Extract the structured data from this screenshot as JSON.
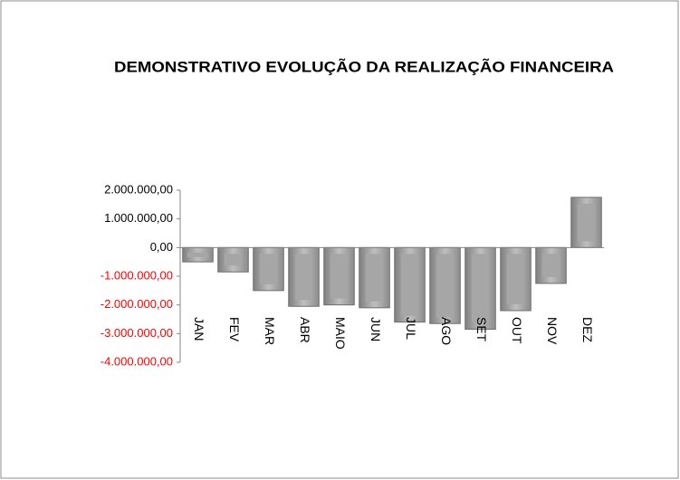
{
  "chart_data": {
    "type": "bar",
    "title": "DEMONSTRATIVO EVOLUÇÃO DA REALIZAÇÃO FINANCEIRA",
    "categories": [
      "JAN",
      "FEV",
      "MAR",
      "ABR",
      "MAIO",
      "JUN",
      "JUL",
      "AGO",
      "SET",
      "OUT",
      "NOV",
      "DEZ"
    ],
    "values": [
      -500000,
      -850000,
      -1500000,
      -2050000,
      -2000000,
      -2100000,
      -2600000,
      -2650000,
      -2850000,
      -2200000,
      -1250000,
      1750000
    ],
    "color": "#a6a6a6",
    "ylim": [
      -4000000,
      2000000
    ],
    "yticks": [
      {
        "value": 2000000,
        "label": "2.000.000,00"
      },
      {
        "value": 1000000,
        "label": "1.000.000,00"
      },
      {
        "value": 0,
        "label": "0,00"
      },
      {
        "value": -1000000,
        "label": "-1.000.000,00"
      },
      {
        "value": -2000000,
        "label": "-2.000.000,00"
      },
      {
        "value": -3000000,
        "label": "-3.000.000,00"
      },
      {
        "value": -4000000,
        "label": "-4.000.000,00"
      }
    ],
    "tick_label_color": "#000000",
    "negative_tick_label_color": "#ff0000",
    "grid": false
  }
}
